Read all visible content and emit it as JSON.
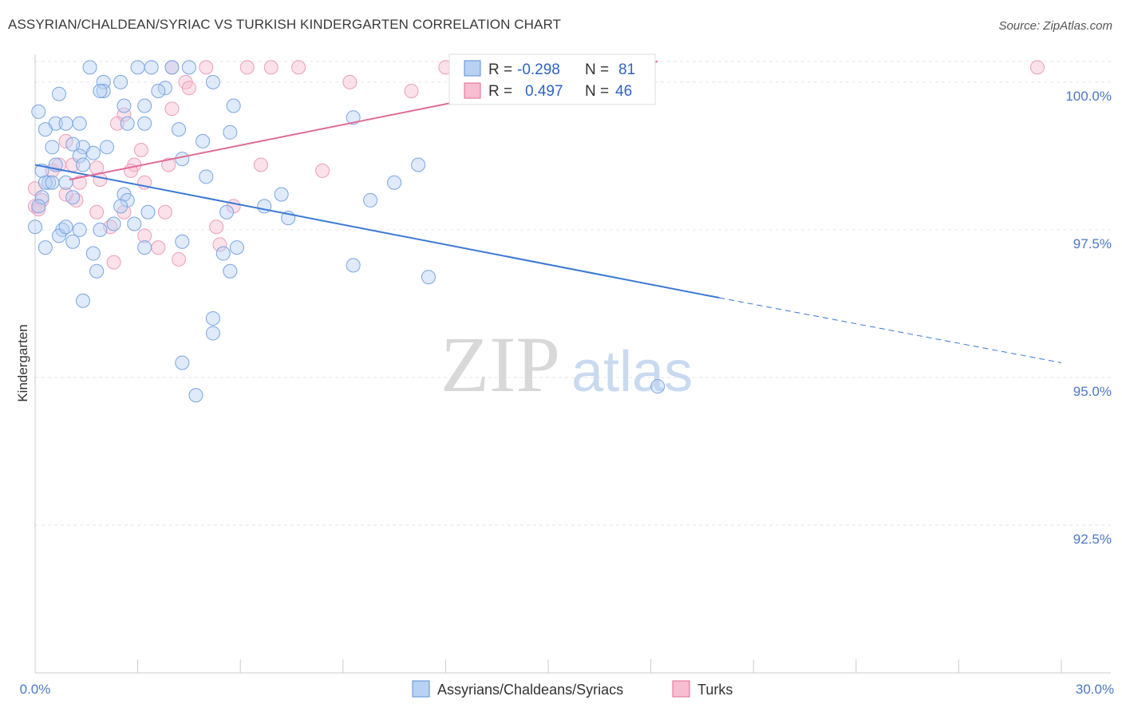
{
  "title": "ASSYRIAN/CHALDEAN/SYRIAC VS TURKISH KINDERGARTEN CORRELATION CHART",
  "source": "Source: ZipAtlas.com",
  "watermark": {
    "zip": "ZIP",
    "atlas": "atlas"
  },
  "colors": {
    "blue": "#5b8fd6",
    "blue_fill": "#b9d1f3",
    "pink": "#e06b95",
    "pink_fill": "#f7bdd0",
    "label_blue": "#4a78c8"
  },
  "legend": {
    "blue": {
      "r_label": "R = ",
      "r_value": "-0.298",
      "n_label": "N = ",
      "n_value": "81"
    },
    "pink": {
      "r_label": "R = ",
      "r_value": "0.497",
      "n_label": "N = ",
      "n_value": "46"
    }
  },
  "chart_data": {
    "type": "scatter",
    "ylabel": "Kindergarten",
    "xlim": [
      0,
      30
    ],
    "ylim": [
      90.0,
      100.35
    ],
    "x_tick_labels": [
      "0.0%",
      "30.0%"
    ],
    "y_ticks": [
      {
        "value": 100.0,
        "label": "100.0%"
      },
      {
        "value": 97.5,
        "label": "97.5%"
      },
      {
        "value": 95.0,
        "label": "95.0%"
      },
      {
        "value": 92.5,
        "label": "92.5%"
      }
    ],
    "series": [
      {
        "name": "Assyrians/Chaldeans/Syriacs",
        "color": "#5b8fd6",
        "trend": {
          "x0": 0.0,
          "y0": 98.6,
          "x1": 20.0,
          "y1": 96.35,
          "x_dash_end": 30.0,
          "y_dash_end": 95.25
        },
        "points": [
          [
            1.6,
            100.25
          ],
          [
            3.0,
            100.25
          ],
          [
            3.4,
            100.25
          ],
          [
            4.0,
            100.25
          ],
          [
            4.5,
            100.25
          ],
          [
            2.0,
            100.0
          ],
          [
            2.5,
            100.0
          ],
          [
            3.8,
            99.9
          ],
          [
            5.2,
            100.0
          ],
          [
            2.0,
            99.85
          ],
          [
            1.9,
            99.85
          ],
          [
            3.6,
            99.85
          ],
          [
            0.7,
            99.8
          ],
          [
            3.2,
            99.6
          ],
          [
            2.6,
            99.6
          ],
          [
            5.8,
            99.6
          ],
          [
            2.7,
            99.3
          ],
          [
            0.6,
            99.3
          ],
          [
            1.3,
            99.3
          ],
          [
            0.9,
            99.3
          ],
          [
            3.2,
            99.3
          ],
          [
            4.2,
            99.2
          ],
          [
            5.7,
            99.15
          ],
          [
            9.3,
            99.4
          ],
          [
            1.4,
            98.9
          ],
          [
            0.5,
            98.9
          ],
          [
            1.1,
            98.95
          ],
          [
            1.3,
            98.75
          ],
          [
            1.7,
            98.8
          ],
          [
            2.1,
            98.9
          ],
          [
            4.3,
            98.7
          ],
          [
            11.2,
            98.6
          ],
          [
            0.2,
            98.5
          ],
          [
            0.6,
            98.6
          ],
          [
            1.4,
            98.6
          ],
          [
            0.4,
            98.3
          ],
          [
            0.3,
            98.3
          ],
          [
            0.5,
            98.3
          ],
          [
            0.9,
            98.3
          ],
          [
            5.0,
            98.4
          ],
          [
            10.5,
            98.3
          ],
          [
            2.6,
            98.1
          ],
          [
            2.7,
            98.0
          ],
          [
            0.2,
            98.05
          ],
          [
            1.1,
            98.05
          ],
          [
            9.8,
            98.0
          ],
          [
            0.1,
            97.9
          ],
          [
            2.5,
            97.9
          ],
          [
            6.7,
            97.9
          ],
          [
            7.2,
            98.1
          ],
          [
            3.3,
            97.8
          ],
          [
            5.6,
            97.8
          ],
          [
            7.4,
            97.7
          ],
          [
            0.8,
            97.5
          ],
          [
            1.3,
            97.5
          ],
          [
            1.9,
            97.5
          ],
          [
            2.3,
            97.6
          ],
          [
            2.9,
            97.6
          ],
          [
            0.3,
            97.2
          ],
          [
            0.7,
            97.4
          ],
          [
            1.1,
            97.3
          ],
          [
            4.3,
            97.3
          ],
          [
            5.9,
            97.2
          ],
          [
            3.2,
            97.2
          ],
          [
            0.0,
            97.55
          ],
          [
            1.7,
            97.1
          ],
          [
            1.8,
            96.8
          ],
          [
            5.5,
            97.1
          ],
          [
            5.7,
            96.8
          ],
          [
            9.3,
            96.9
          ],
          [
            11.5,
            96.7
          ],
          [
            1.4,
            96.3
          ],
          [
            5.2,
            96.0
          ],
          [
            5.2,
            95.75
          ],
          [
            4.3,
            95.25
          ],
          [
            4.7,
            94.7
          ],
          [
            18.2,
            94.85
          ],
          [
            0.1,
            99.5
          ],
          [
            0.3,
            99.2
          ],
          [
            4.9,
            99.0
          ],
          [
            0.9,
            97.55
          ]
        ]
      },
      {
        "name": "Turks",
        "color": "#e06b95",
        "trend": {
          "x0": 1.0,
          "y0": 98.35,
          "x1": 18.2,
          "y1": 100.35
        },
        "points": [
          [
            4.0,
            100.25
          ],
          [
            5.0,
            100.25
          ],
          [
            6.2,
            100.25
          ],
          [
            6.9,
            100.25
          ],
          [
            7.7,
            100.25
          ],
          [
            12.0,
            100.25
          ],
          [
            12.3,
            100.25
          ],
          [
            29.3,
            100.25
          ],
          [
            4.4,
            100.0
          ],
          [
            4.5,
            99.9
          ],
          [
            9.2,
            100.0
          ],
          [
            11.0,
            99.85
          ],
          [
            4.0,
            99.55
          ],
          [
            2.6,
            99.45
          ],
          [
            2.4,
            99.3
          ],
          [
            0.9,
            99.0
          ],
          [
            3.1,
            98.85
          ],
          [
            0.7,
            98.6
          ],
          [
            1.1,
            98.6
          ],
          [
            2.9,
            98.6
          ],
          [
            3.9,
            98.6
          ],
          [
            6.6,
            98.6
          ],
          [
            8.4,
            98.5
          ],
          [
            1.8,
            98.55
          ],
          [
            1.3,
            98.3
          ],
          [
            1.9,
            98.35
          ],
          [
            3.2,
            98.3
          ],
          [
            0.0,
            98.2
          ],
          [
            0.2,
            98.0
          ],
          [
            1.2,
            98.0
          ],
          [
            0.0,
            97.9
          ],
          [
            0.9,
            98.1
          ],
          [
            1.8,
            97.8
          ],
          [
            2.6,
            97.8
          ],
          [
            3.8,
            97.8
          ],
          [
            5.8,
            97.9
          ],
          [
            5.3,
            97.55
          ],
          [
            2.2,
            97.55
          ],
          [
            3.2,
            97.4
          ],
          [
            3.6,
            97.2
          ],
          [
            5.4,
            97.25
          ],
          [
            2.3,
            96.95
          ],
          [
            4.2,
            97.0
          ],
          [
            0.5,
            98.5
          ],
          [
            2.8,
            98.5
          ],
          [
            0.1,
            97.85
          ]
        ]
      }
    ]
  },
  "bottom_legend": [
    "Assyrians/Chaldeans/Syriacs",
    "Turks"
  ]
}
